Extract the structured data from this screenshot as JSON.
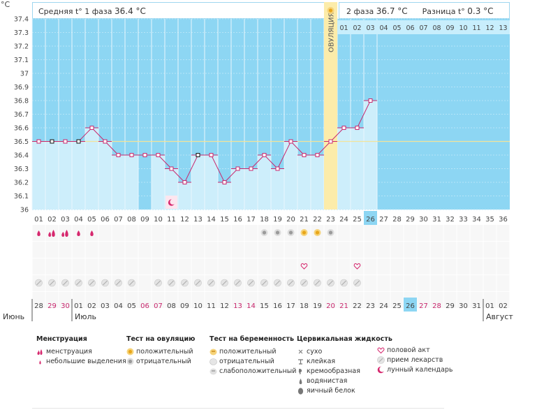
{
  "info": {
    "phase1_label": "Средняя t° 1 фаза",
    "phase1_value": "36.4 °C",
    "phase2_label": "2 фаза",
    "phase2_value": "36.7 °C",
    "diff_label": "Разница t°",
    "diff_value": "0.3 °C"
  },
  "chart_data": {
    "type": "line",
    "ylabel": "°C",
    "ylim": [
      36,
      37.4
    ],
    "yticks": [
      "36",
      "36.1",
      "36.2",
      "36.3",
      "36.4",
      "36.5",
      "36.6",
      "36.7",
      "36.8",
      "36.9",
      "37",
      "37.1",
      "37.2",
      "37.3",
      "37.4"
    ],
    "cycle_days": [
      "01",
      "02",
      "03",
      "04",
      "05",
      "06",
      "07",
      "08",
      "09",
      "10",
      "11",
      "12",
      "13",
      "14",
      "15",
      "16",
      "17",
      "18",
      "19",
      "20",
      "21",
      "22",
      "23",
      "24",
      "25",
      "26",
      "27",
      "28",
      "29",
      "30",
      "31",
      "32",
      "33",
      "34",
      "35",
      "36"
    ],
    "current_day": "26",
    "temperatures": [
      36.5,
      36.5,
      36.5,
      36.5,
      36.6,
      36.5,
      36.4,
      36.4,
      36.4,
      36.4,
      36.3,
      36.2,
      36.4,
      36.4,
      36.2,
      36.3,
      36.3,
      36.4,
      36.3,
      36.5,
      36.4,
      36.4,
      36.5,
      36.6,
      36.6,
      36.8
    ],
    "missing_days": [
      9
    ],
    "marked_days": [
      2,
      4,
      13
    ],
    "coverline": 36.5,
    "ovulation_day": 23,
    "ovulation_label": "ОВУЛЯЦИЯ",
    "phase2_days": [
      "01",
      "02",
      "03",
      "04",
      "05",
      "06",
      "07",
      "08",
      "09",
      "10",
      "11",
      "12",
      "13"
    ],
    "dates": [
      {
        "d": "28",
        "red": false
      },
      {
        "d": "29",
        "red": true
      },
      {
        "d": "30",
        "red": true
      },
      {
        "d": "01",
        "red": false
      },
      {
        "d": "02",
        "red": false
      },
      {
        "d": "03",
        "red": false
      },
      {
        "d": "04",
        "red": false
      },
      {
        "d": "05",
        "red": false
      },
      {
        "d": "06",
        "red": true
      },
      {
        "d": "07",
        "red": true
      },
      {
        "d": "08",
        "red": false
      },
      {
        "d": "09",
        "red": false
      },
      {
        "d": "10",
        "red": false
      },
      {
        "d": "11",
        "red": false
      },
      {
        "d": "12",
        "red": false
      },
      {
        "d": "13",
        "red": true
      },
      {
        "d": "14",
        "red": true
      },
      {
        "d": "15",
        "red": false
      },
      {
        "d": "16",
        "red": false
      },
      {
        "d": "17",
        "red": false
      },
      {
        "d": "18",
        "red": false
      },
      {
        "d": "19",
        "red": false
      },
      {
        "d": "20",
        "red": true
      },
      {
        "d": "21",
        "red": true
      },
      {
        "d": "22",
        "red": false
      },
      {
        "d": "23",
        "red": false
      },
      {
        "d": "24",
        "red": false
      },
      {
        "d": "25",
        "red": false
      },
      {
        "d": "26",
        "red": false
      },
      {
        "d": "27",
        "red": true
      },
      {
        "d": "28",
        "red": true
      },
      {
        "d": "29",
        "red": false
      },
      {
        "d": "30",
        "red": false
      },
      {
        "d": "31",
        "red": false
      },
      {
        "d": "01",
        "red": false
      },
      {
        "d": "02",
        "red": false
      }
    ],
    "today_index": 28,
    "months": [
      {
        "name": "Июнь",
        "index": 0
      },
      {
        "name": "Июль",
        "index": 3
      },
      {
        "name": "Август",
        "index": 34
      }
    ],
    "menstruation_heavy_days": [
      2,
      3
    ],
    "menstruation_light_days": [
      1,
      4,
      5
    ],
    "ovulation_test_positive_days": [
      21,
      22
    ],
    "ovulation_test_negative_days": [
      18,
      19,
      20,
      23
    ],
    "intercourse_days": [
      21,
      25
    ],
    "moon_day": 11,
    "medication_days": [
      1,
      2,
      3,
      4,
      5,
      6,
      7,
      8,
      10,
      11,
      12,
      13,
      14,
      15,
      16,
      17,
      18,
      19,
      20,
      21,
      22,
      23,
      24,
      25
    ]
  },
  "legend": {
    "menstruation": {
      "title": "Менструация",
      "items": [
        "менструация",
        "небольшие выделения"
      ]
    },
    "ovulation_test": {
      "title": "Тест на овуляцию",
      "items": [
        "положительный",
        "отрицательный"
      ]
    },
    "pregnancy_test": {
      "title": "Тест на беременность",
      "items": [
        "положительный",
        "отрицательный",
        "слабоположительный"
      ]
    },
    "cervical": {
      "title": "Цервикальная жидкость",
      "items": [
        "сухо",
        "клейкая",
        "кремообразная",
        "водянистая",
        "яичный белок"
      ]
    },
    "other": {
      "items": [
        "половой акт",
        "прием лекарств",
        "лунный календарь"
      ]
    }
  },
  "colors": {
    "bg_blue": "#8dd6f3",
    "bar_fill": "#cdeefb",
    "line": "#c8286e",
    "ovulation": "#fcecaa",
    "red_text": "#c8286e",
    "today": "#8dd6f3"
  }
}
